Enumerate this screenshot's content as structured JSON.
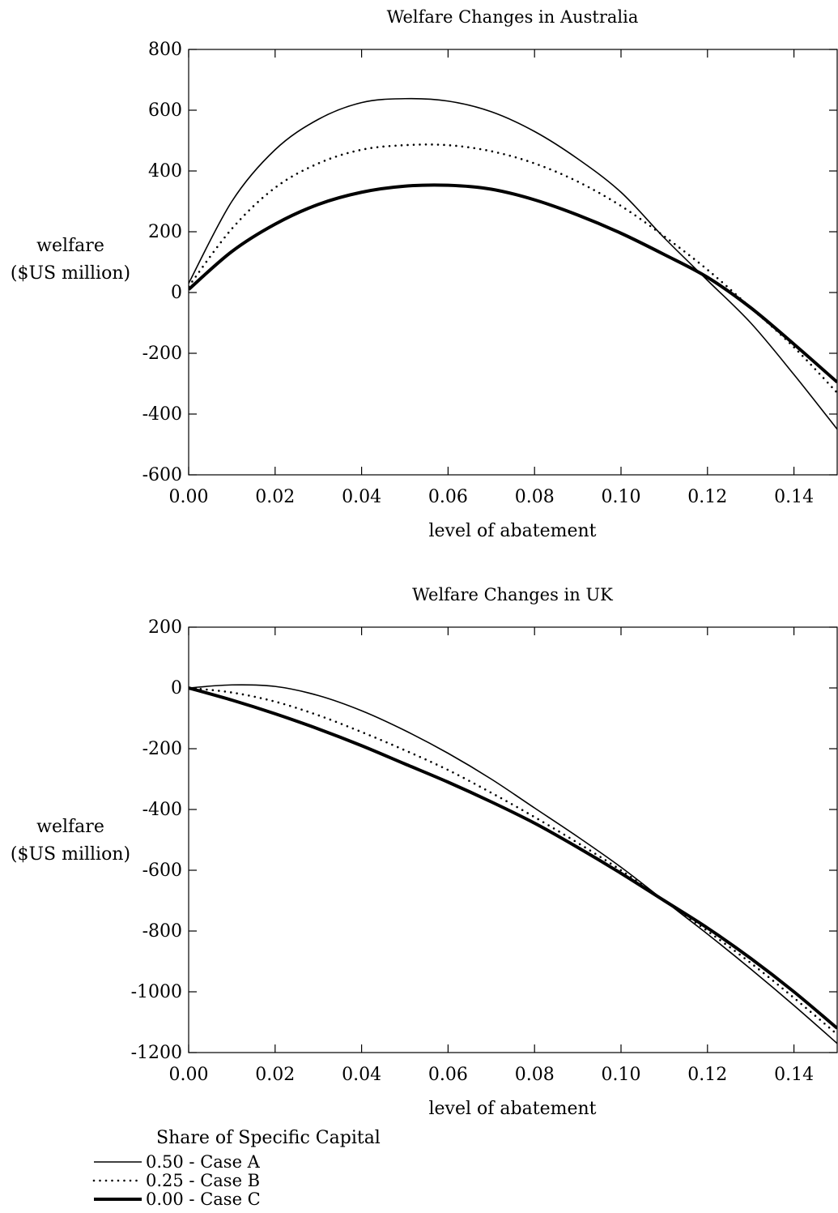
{
  "chart_data": [
    {
      "type": "line",
      "title": "Welfare Changes in Australia",
      "xlabel": "level of abatement",
      "ylabel": [
        "welfare",
        "($US million)"
      ],
      "xlim": [
        0,
        0.15
      ],
      "ylim": [
        -600,
        800
      ],
      "xticks": [
        0,
        0.02,
        0.04,
        0.06,
        0.08,
        0.1,
        0.12,
        0.14
      ],
      "xtick_labels": [
        "0.00",
        "0.02",
        "0.04",
        "0.06",
        "0.08",
        "0.10",
        "0.12",
        "0.14"
      ],
      "yticks": [
        -600,
        -400,
        -200,
        0,
        200,
        400,
        600,
        800
      ],
      "ytick_labels": [
        "-600",
        "-400",
        "-200",
        "0",
        "200",
        "400",
        "600",
        "800"
      ],
      "grid": false,
      "x": [
        0,
        0.01,
        0.02,
        0.03,
        0.04,
        0.05,
        0.06,
        0.07,
        0.08,
        0.09,
        0.1,
        0.11,
        0.12,
        0.13,
        0.14,
        0.15
      ],
      "series": [
        {
          "name": "0.50 - Case A",
          "style": "solid",
          "values": [
            30,
            300,
            470,
            570,
            625,
            638,
            630,
            595,
            530,
            440,
            330,
            180,
            40,
            -100,
            -270,
            -450
          ]
        },
        {
          "name": "0.25 - Case B",
          "style": "dotted",
          "values": [
            20,
            210,
            345,
            425,
            470,
            485,
            485,
            465,
            425,
            365,
            285,
            185,
            75,
            -50,
            -180,
            -330
          ]
        },
        {
          "name": "0.00 - Case C",
          "style": "thick",
          "values": [
            10,
            135,
            225,
            290,
            330,
            350,
            353,
            340,
            305,
            255,
            195,
            125,
            50,
            -50,
            -170,
            -295
          ]
        }
      ]
    },
    {
      "type": "line",
      "title": "Welfare Changes in UK",
      "xlabel": "level of abatement",
      "ylabel": [
        "welfare",
        "($US million)"
      ],
      "xlim": [
        0,
        0.15
      ],
      "ylim": [
        -1200,
        200
      ],
      "xticks": [
        0,
        0.02,
        0.04,
        0.06,
        0.08,
        0.1,
        0.12,
        0.14
      ],
      "xtick_labels": [
        "0.00",
        "0.02",
        "0.04",
        "0.06",
        "0.08",
        "0.10",
        "0.12",
        "0.14"
      ],
      "yticks": [
        -1200,
        -1000,
        -800,
        -600,
        -400,
        -200,
        0,
        200
      ],
      "ytick_labels": [
        "-1200",
        "-1000",
        "-800",
        "-600",
        "-400",
        "-200",
        "0",
        "200"
      ],
      "grid": false,
      "x": [
        0,
        0.01,
        0.02,
        0.03,
        0.04,
        0.05,
        0.06,
        0.07,
        0.08,
        0.09,
        0.1,
        0.11,
        0.12,
        0.13,
        0.14,
        0.15
      ],
      "series": [
        {
          "name": "0.50 - Case A",
          "style": "solid",
          "values": [
            0,
            10,
            5,
            -25,
            -75,
            -140,
            -215,
            -300,
            -395,
            -490,
            -590,
            -700,
            -810,
            -925,
            -1045,
            -1170
          ]
        },
        {
          "name": "0.25 - Case B",
          "style": "dotted",
          "values": [
            0,
            -15,
            -45,
            -90,
            -145,
            -205,
            -270,
            -345,
            -425,
            -510,
            -600,
            -700,
            -800,
            -905,
            -1020,
            -1140
          ]
        },
        {
          "name": "0.00 - Case C",
          "style": "thick",
          "values": [
            0,
            -40,
            -85,
            -135,
            -190,
            -250,
            -310,
            -375,
            -445,
            -525,
            -610,
            -700,
            -790,
            -890,
            -1000,
            -1120
          ]
        }
      ]
    }
  ],
  "legend": {
    "title": "Share of Specific Capital",
    "placement": "bottom-left",
    "entries": [
      {
        "label": "0.50 - Case A",
        "style": "solid"
      },
      {
        "label": "0.25 - Case B",
        "style": "dotted"
      },
      {
        "label": "0.00 - Case C",
        "style": "thick"
      }
    ]
  }
}
